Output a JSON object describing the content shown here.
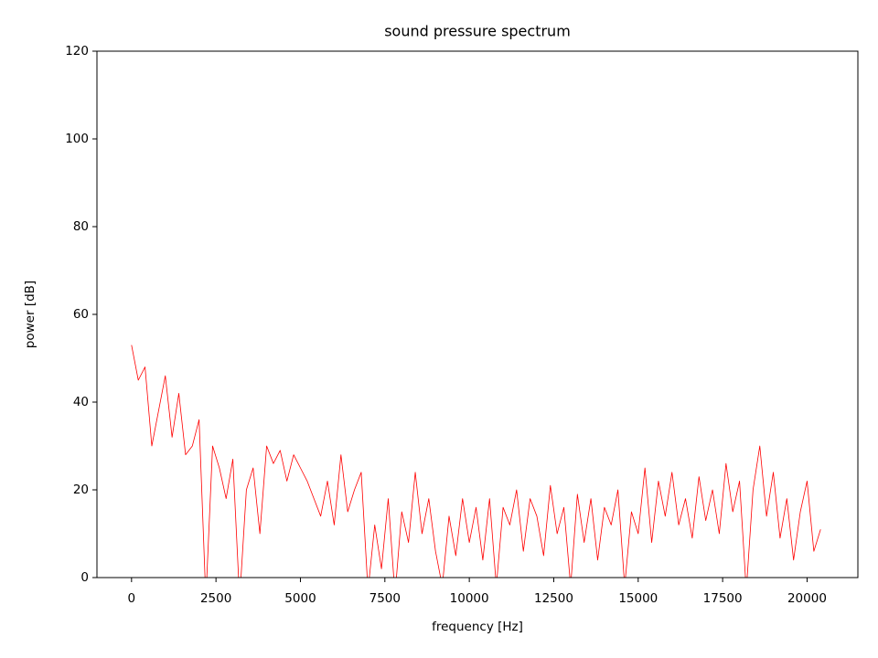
{
  "chart_data": {
    "type": "line",
    "title": "sound pressure spectrum",
    "x_label": "frequency [Hz]",
    "y_label": "power [dB]",
    "color": "#ff0000",
    "x": [
      0,
      200,
      400,
      600,
      800,
      1000,
      1200,
      1400,
      1600,
      1800,
      2000,
      2200,
      2400,
      2600,
      2800,
      3000,
      3200,
      3400,
      3600,
      3800,
      4000,
      4200,
      4400,
      4600,
      4800,
      5000,
      5200,
      5400,
      5600,
      5800,
      6000,
      6200,
      6400,
      6600,
      6800,
      7000,
      7200,
      7400,
      7600,
      7800,
      8000,
      8200,
      8400,
      8600,
      8800,
      9000,
      9200,
      9400,
      9600,
      9800,
      10000,
      10200,
      10400,
      10600,
      10800,
      11000,
      11200,
      11400,
      11600,
      11800,
      12000,
      12200,
      12400,
      12600,
      12800,
      13000,
      13200,
      13400,
      13600,
      13800,
      14000,
      14200,
      14400,
      14600,
      14800,
      15000,
      15200,
      15400,
      15600,
      15800,
      16000,
      16200,
      16400,
      16600,
      16800,
      17000,
      17200,
      17400,
      17600,
      17800,
      18000,
      18200,
      18400,
      18600,
      18800,
      19000,
      19200,
      19400,
      19600,
      19800,
      20000,
      20200,
      20400
    ],
    "values": [
      53,
      45,
      48,
      30,
      38,
      46,
      32,
      42,
      28,
      30,
      36,
      -5,
      30,
      25,
      18,
      27,
      -5,
      20,
      25,
      10,
      30,
      26,
      29,
      22,
      28,
      25,
      22,
      18,
      14,
      22,
      12,
      28,
      15,
      20,
      24,
      -3,
      12,
      2,
      18,
      -4,
      15,
      8,
      24,
      10,
      18,
      6,
      -2,
      14,
      5,
      18,
      8,
      16,
      4,
      18,
      -2,
      16,
      12,
      20,
      6,
      18,
      14,
      5,
      21,
      10,
      16,
      -2,
      19,
      8,
      18,
      4,
      16,
      12,
      20,
      -2,
      15,
      10,
      25,
      8,
      22,
      14,
      24,
      12,
      18,
      9,
      23,
      13,
      20,
      10,
      26,
      15,
      22,
      -3,
      20,
      30,
      14,
      24,
      9,
      18,
      4,
      15,
      22,
      6,
      11
    ],
    "xlim": [
      -1024,
      21504
    ],
    "ylim": [
      0,
      120
    ],
    "xticks": [
      0,
      2500,
      5000,
      7500,
      10000,
      12500,
      15000,
      17500,
      20000
    ],
    "yticks": [
      0,
      20,
      40,
      60,
      80,
      100,
      120
    ]
  }
}
